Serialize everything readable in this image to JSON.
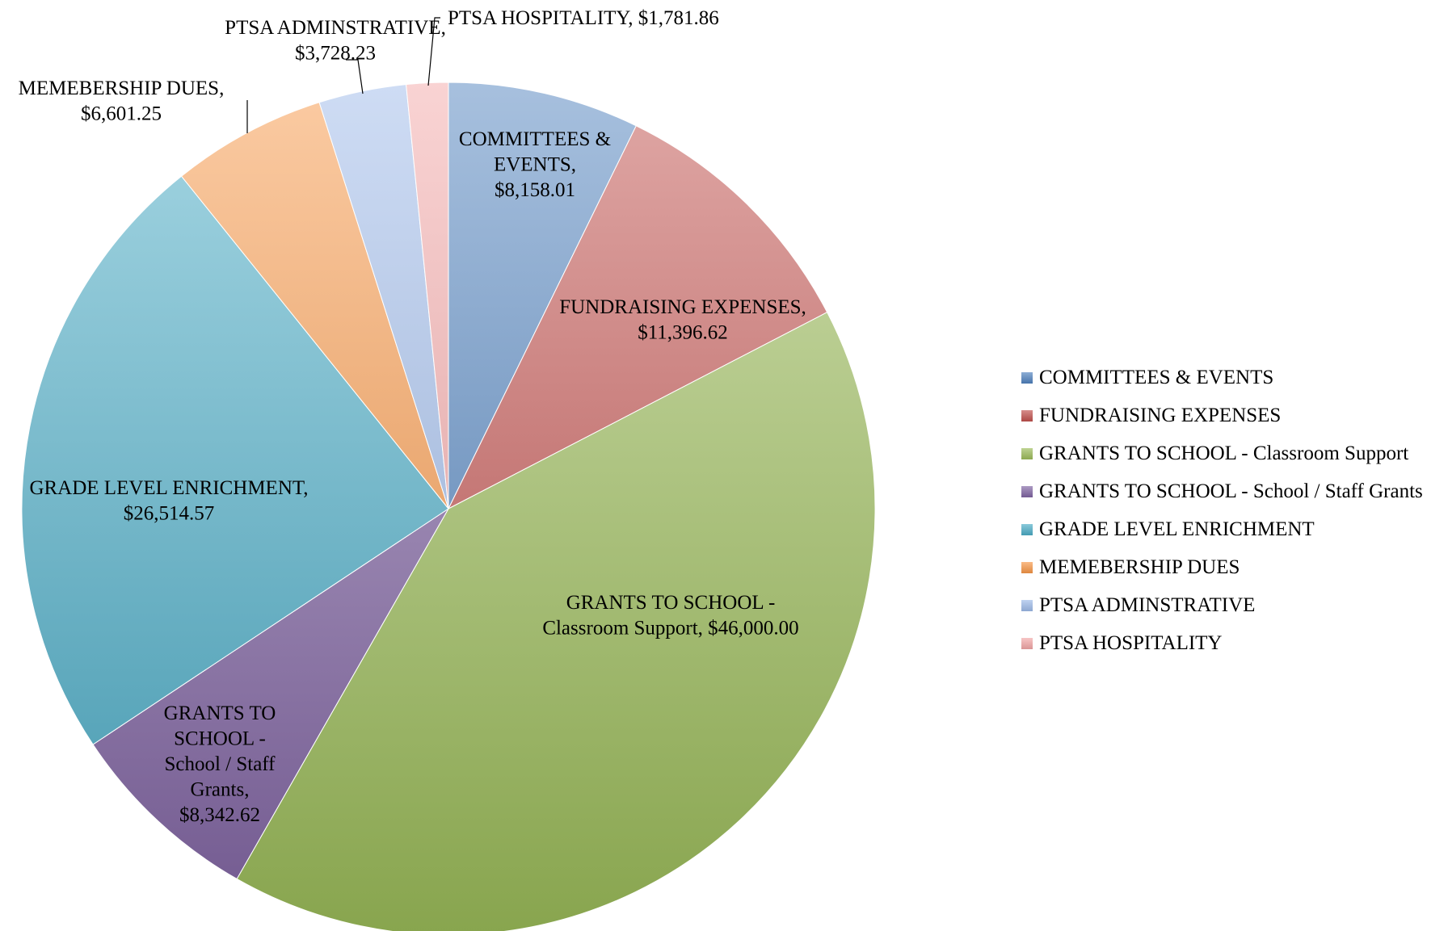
{
  "chart_data": {
    "type": "pie",
    "slices": [
      {
        "name": "COMMITTEES & EVENTS",
        "value": 8158.01,
        "label_lines": [
          "COMMITTEES &",
          "EVENTS,",
          "$8,158.01"
        ],
        "color": "#4f81bd"
      },
      {
        "name": "FUNDRAISING EXPENSES",
        "value": 11396.62,
        "label_lines": [
          "FUNDRAISING EXPENSES,",
          "$11,396.62"
        ],
        "color": "#c0504d"
      },
      {
        "name": "GRANTS TO SCHOOL - Classroom Support",
        "value": 46000.0,
        "label_lines": [
          "GRANTS TO SCHOOL -",
          "Classroom Support,  $46,000.00"
        ],
        "color": "#9bbb59"
      },
      {
        "name": "GRANTS TO SCHOOL - School / Staff Grants",
        "value": 8342.62,
        "label_lines": [
          "GRANTS TO",
          "SCHOOL -",
          "School / Staff",
          "Grants,",
          "$8,342.62"
        ],
        "color": "#8064a2"
      },
      {
        "name": "GRADE LEVEL ENRICHMENT",
        "value": 26514.57,
        "label_lines": [
          "GRADE LEVEL ENRICHMENT,",
          "$26,514.57"
        ],
        "color": "#4bacc6"
      },
      {
        "name": "MEMEBERSHIP DUES",
        "value": 6601.25,
        "label_lines": [
          "MEMEBERSHIP DUES,",
          "$6,601.25"
        ],
        "color": "#f79646"
      },
      {
        "name": "PTSA ADMINSTRATIVE",
        "value": 3728.23,
        "label_lines": [
          "PTSA ADMINSTRATIVE,",
          "$3,728.23"
        ],
        "color": "#9db9e8"
      },
      {
        "name": "PTSA HOSPITALITY",
        "value": 1781.86,
        "label_lines": [
          "PTSA HOSPITALITY,  $1,781.86"
        ],
        "color": "#f2a6a6"
      }
    ],
    "legend_position": "right"
  }
}
